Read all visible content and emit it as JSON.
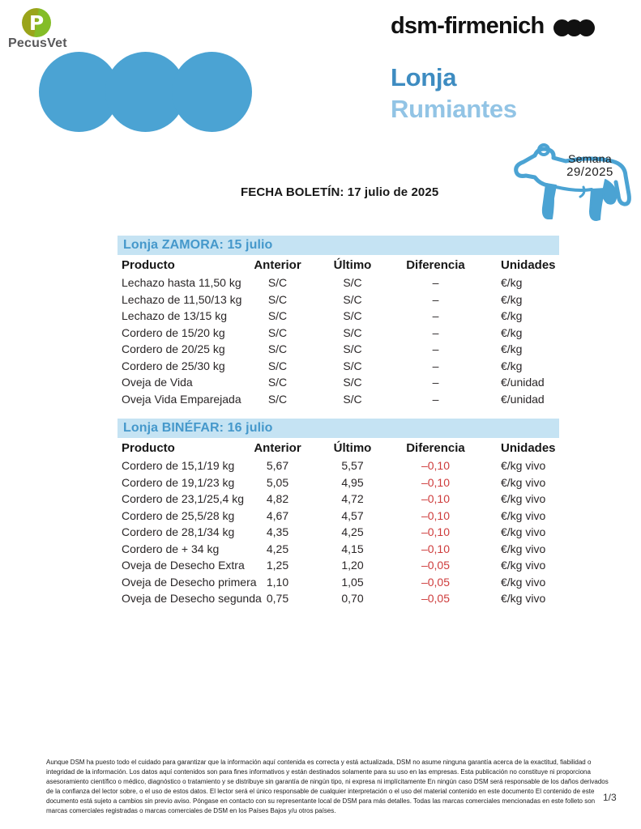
{
  "branding": {
    "pecusvet_name": "PecusVet",
    "pecusvet_monogram": "P",
    "dsm_name": "dsm-firmenich",
    "title_line1": "Lonja",
    "title_line2": "Rumiantes"
  },
  "week_badge": {
    "label": "Semana",
    "value": "29/2025"
  },
  "bulletin_date": "FECHA BOLETÍN: 17 julio de 2025",
  "colors": {
    "accent_blue": "#4BA3D3",
    "title_blue": "#3E8CC1",
    "title_light_blue": "#92C4E5",
    "table_bar_bg": "#C5E3F3",
    "table_bar_text": "#4598CB",
    "negative_red": "#CE3B3B",
    "pecusvet_green": "#84BD27",
    "pecusvet_olive": "#9AA41A"
  },
  "tables": [
    {
      "title": "Lonja ZAMORA: 15 julio",
      "columns": [
        "Producto",
        "Anterior",
        "Último",
        "Diferencia",
        "Unidades"
      ],
      "rows": [
        {
          "cells": [
            "Lechazo hasta 11,50 kg",
            "S/C",
            "S/C",
            "–",
            "€/kg"
          ],
          "negative": false
        },
        {
          "cells": [
            "Lechazo de 11,50/13 kg",
            "S/C",
            "S/C",
            "–",
            "€/kg"
          ],
          "negative": false
        },
        {
          "cells": [
            "Lechazo de 13/15 kg",
            "S/C",
            "S/C",
            "–",
            "€/kg"
          ],
          "negative": false
        },
        {
          "cells": [
            "Cordero de 15/20 kg",
            "S/C",
            "S/C",
            "–",
            "€/kg"
          ],
          "negative": false
        },
        {
          "cells": [
            "Cordero de 20/25 kg",
            "S/C",
            "S/C",
            "–",
            "€/kg"
          ],
          "negative": false
        },
        {
          "cells": [
            "Cordero de 25/30 kg",
            "S/C",
            "S/C",
            "–",
            "€/kg"
          ],
          "negative": false
        },
        {
          "cells": [
            "Oveja de Vida",
            "S/C",
            "S/C",
            "–",
            "€/unidad"
          ],
          "negative": false
        },
        {
          "cells": [
            "Oveja Vida Emparejada",
            "S/C",
            "S/C",
            "–",
            "€/unidad"
          ],
          "negative": false
        }
      ]
    },
    {
      "title": "Lonja BINÉFAR: 16 julio",
      "columns": [
        "Producto",
        "Anterior",
        "Último",
        "Diferencia",
        "Unidades"
      ],
      "rows": [
        {
          "cells": [
            "Cordero de 15,1/19 kg",
            "5,67",
            "5,57",
            "–0,10",
            "€/kg vivo"
          ],
          "negative": true
        },
        {
          "cells": [
            "Cordero de 19,1/23 kg",
            "5,05",
            "4,95",
            "–0,10",
            "€/kg vivo"
          ],
          "negative": true
        },
        {
          "cells": [
            "Cordero de 23,1/25,4 kg",
            "4,82",
            "4,72",
            "–0,10",
            "€/kg vivo"
          ],
          "negative": true
        },
        {
          "cells": [
            "Cordero de 25,5/28 kg",
            "4,67",
            "4,57",
            "–0,10",
            "€/kg vivo"
          ],
          "negative": true
        },
        {
          "cells": [
            "Cordero de 28,1/34 kg",
            "4,35",
            "4,25",
            "–0,10",
            "€/kg vivo"
          ],
          "negative": true
        },
        {
          "cells": [
            "Cordero de + 34 kg",
            "4,25",
            "4,15",
            "–0,10",
            "€/kg vivo"
          ],
          "negative": true
        },
        {
          "cells": [
            "Oveja de Desecho Extra",
            "1,25",
            "1,20",
            "–0,05",
            "€/kg vivo"
          ],
          "negative": true
        },
        {
          "cells": [
            "Oveja de Desecho primera",
            "1,10",
            "1,05",
            "–0,05",
            "€/kg vivo"
          ],
          "negative": true
        },
        {
          "cells": [
            "Oveja de Desecho segunda",
            "0,75",
            "0,70",
            "–0,05",
            "€/kg vivo"
          ],
          "negative": true
        }
      ]
    }
  ],
  "footer": {
    "disclaimer": "Aunque DSM ha puesto todo el cuidado para garantizar que la información aquí contenida es correcta y está actualizada, DSM no asume ninguna garantía acerca de la exactitud, fiabilidad o integridad de la información. Los datos aquí contenidos son para fines informativos y están destinados solamente para su uso en las empresas. Esta publicación no constituye ni proporciona asesoramiento científico o médico, diagnóstico o tratamiento y se distribuye sin garantía de ningún tipo, ni expresa ni implícitamente En ningún caso DSM será responsable de los daños derivados de la confianza del lector sobre, o el uso de estos datos. El lector será el único responsable de cualquier interpretación o el uso del material contenido en este documento El contenido de este documento está sujeto a cambios sin previo aviso. Póngase en contacto con su representante local de DSM para más detalles. Todas las marcas comerciales mencionadas en este folleto son marcas comerciales registradas o marcas comerciales de DSM en los Países Bajos y/u otros países.",
    "page_number": "1/3"
  }
}
